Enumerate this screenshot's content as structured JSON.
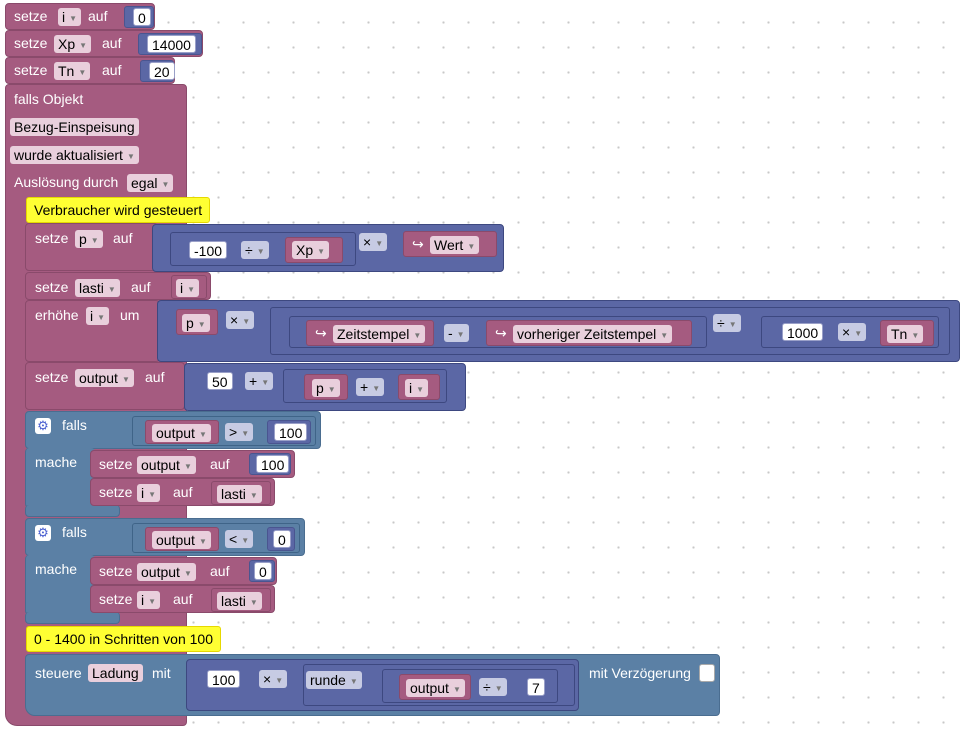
{
  "kw": {
    "setze": "setze",
    "auf": "auf",
    "erhoehe": "erhöhe",
    "um": "um",
    "falls": "falls",
    "mache": "mache",
    "falls_objekt": "falls Objekt",
    "ausloesung_durch": "Auslösung durch",
    "steuere": "steuere",
    "mit": "mit",
    "mit_verzoegerung": "mit Verzögerung"
  },
  "init": [
    {
      "var": "i",
      "value": "0"
    },
    {
      "var": "Xp",
      "value": "14000"
    },
    {
      "var": "Tn",
      "value": "20"
    }
  ],
  "trigger": {
    "object": "Bezug-Einspeisung",
    "event": "wurde aktualisiert",
    "source": "egal"
  },
  "comments": {
    "c1": "Verbraucher wird gesteuert",
    "c2": "0 - 1400 in Schritten von 100"
  },
  "ops": {
    "div": "÷",
    "mul": "×",
    "plus": "+",
    "minus": "-",
    "gt": ">",
    "lt": "<"
  },
  "arrow": "↪",
  "set_p": {
    "var": "p",
    "num": "-100",
    "xp": "Xp",
    "wert": "Wert"
  },
  "set_lasti": {
    "var": "lasti",
    "val": "i"
  },
  "inc_i": {
    "var": "i",
    "p": "p",
    "zeitstempel": "Zeitstempel",
    "vorheriger": "vorheriger Zeitstempel",
    "num": "1000",
    "tn": "Tn"
  },
  "set_output": {
    "var": "output",
    "num": "50",
    "p": "p",
    "i": "i"
  },
  "if1": {
    "cond_var": "output",
    "num": "100",
    "set1_var": "output",
    "set1_val": "100",
    "set2_var": "i",
    "set2_val": "lasti"
  },
  "if2": {
    "cond_var": "output",
    "num": "0",
    "set1_var": "output",
    "set1_val": "0",
    "set2_var": "i",
    "set2_val": "lasti"
  },
  "control": {
    "target": "Ladung",
    "num": "100",
    "round": "runde",
    "var": "output",
    "divisor": "7"
  },
  "colors": {
    "procedure": "#a55b80",
    "variables": "#5b67a5",
    "logic": "#5b80a5",
    "comment": "#ffff33"
  }
}
